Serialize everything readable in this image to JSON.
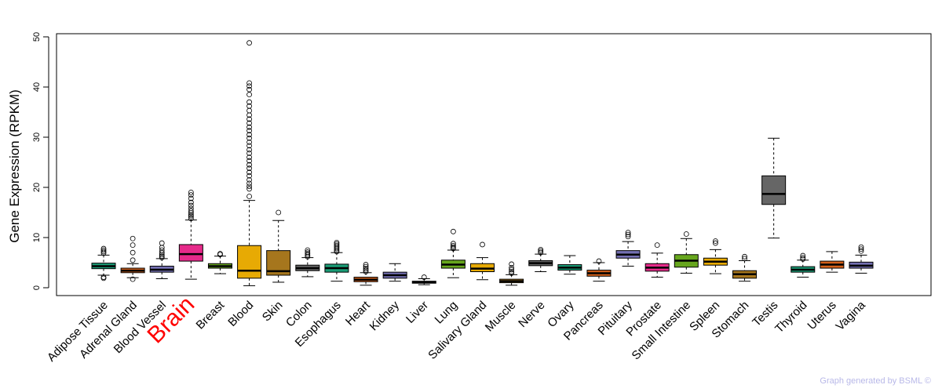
{
  "chart_data": {
    "type": "box",
    "ylabel": "Gene Expression (RPKM)",
    "ylim": [
      0,
      50
    ],
    "yticks": [
      0,
      10,
      20,
      30,
      40,
      50
    ],
    "grid": false,
    "highlight": "Brain",
    "highlight_color": "#ff0000",
    "categories": [
      "Adipose Tissue",
      "Adrenal Gland",
      "Blood Vessel",
      "Brain",
      "Breast",
      "Blood",
      "Skin",
      "Colon",
      "Esophagus",
      "Heart",
      "Kidney",
      "Liver",
      "Lung",
      "Salivary Gland",
      "Muscle",
      "Nerve",
      "Ovary",
      "Pancreas",
      "Pituitary",
      "Prostate",
      "Small Intestine",
      "Spleen",
      "Stomach",
      "Testis",
      "Thyroid",
      "Uterus",
      "Vagina"
    ],
    "boxes": [
      {
        "name": "Adipose Tissue",
        "color": "#1a9c76",
        "min": 2.5,
        "q1": 3.8,
        "median": 4.3,
        "q3": 4.9,
        "max": 6.5,
        "outliers": [
          1.9,
          2.1,
          6.9,
          7.2,
          7.5,
          7.8
        ]
      },
      {
        "name": "Adrenal Gland",
        "color": "#d3601a",
        "min": 2.0,
        "q1": 3.0,
        "median": 3.4,
        "q3": 3.9,
        "max": 4.8,
        "outliers": [
          1.7,
          5.5,
          7.0,
          8.5,
          9.8
        ]
      },
      {
        "name": "Blood Vessel",
        "color": "#7470b2",
        "min": 1.8,
        "q1": 3.1,
        "median": 3.6,
        "q3": 4.3,
        "max": 5.8,
        "outliers": [
          6.0,
          6.3,
          6.6,
          7.0,
          7.5,
          8.0,
          8.9
        ]
      },
      {
        "name": "Brain",
        "color": "#e62a8a",
        "min": 1.7,
        "q1": 5.3,
        "median": 6.7,
        "q3": 8.6,
        "max": 13.5,
        "outliers": [
          13.8,
          14.2,
          14.5,
          14.9,
          15.3,
          15.8,
          16.4,
          17.0,
          17.8,
          18.5,
          19.0
        ]
      },
      {
        "name": "Breast",
        "color": "#67a61e",
        "min": 2.8,
        "q1": 3.9,
        "median": 4.3,
        "q3": 4.8,
        "max": 6.3,
        "outliers": [
          6.6,
          6.8
        ]
      },
      {
        "name": "Blood",
        "color": "#e7aa04",
        "min": 0.4,
        "q1": 1.9,
        "median": 3.4,
        "q3": 8.4,
        "max": 17.4,
        "outliers": [
          18.2,
          19.7,
          20.2,
          20.8,
          21.5,
          22.3,
          23.0,
          23.8,
          24.5,
          25.3,
          26.0,
          26.8,
          27.5,
          28.3,
          29.0,
          29.8,
          30.5,
          31.3,
          32.0,
          32.8,
          33.6,
          34.4,
          35.3,
          36.2,
          37.0,
          38.5,
          39.5,
          40.2,
          40.8,
          48.8
        ]
      },
      {
        "name": "Skin",
        "color": "#a6761d",
        "min": 1.1,
        "q1": 2.5,
        "median": 3.3,
        "q3": 7.4,
        "max": 13.4,
        "outliers": [
          15.0
        ]
      },
      {
        "name": "Colon",
        "color": "#666666",
        "min": 2.2,
        "q1": 3.4,
        "median": 3.9,
        "q3": 4.5,
        "max": 6.0,
        "outliers": [
          6.2,
          6.5,
          6.8,
          7.1,
          7.5
        ]
      },
      {
        "name": "Esophagus",
        "color": "#1a9c76",
        "min": 1.3,
        "q1": 3.1,
        "median": 3.9,
        "q3": 4.7,
        "max": 7.0,
        "outliers": [
          7.2,
          7.5,
          7.8,
          8.1,
          8.4,
          8.7,
          9.0
        ]
      },
      {
        "name": "Heart",
        "color": "#d3601a",
        "min": 0.5,
        "q1": 1.2,
        "median": 1.6,
        "q3": 2.1,
        "max": 3.0,
        "outliers": [
          3.2,
          3.5,
          3.8,
          4.2,
          4.6
        ]
      },
      {
        "name": "Kidney",
        "color": "#7470b2",
        "min": 1.3,
        "q1": 1.9,
        "median": 2.5,
        "q3": 3.1,
        "max": 4.8,
        "outliers": []
      },
      {
        "name": "Liver",
        "color": "#e62a8a",
        "min": 0.6,
        "q1": 0.9,
        "median": 1.1,
        "q3": 1.3,
        "max": 1.8,
        "outliers": [
          2.1
        ]
      },
      {
        "name": "Lung",
        "color": "#67a61e",
        "min": 2.0,
        "q1": 3.9,
        "median": 4.6,
        "q3": 5.5,
        "max": 7.5,
        "outliers": [
          7.8,
          8.1,
          8.4,
          8.8,
          11.2
        ]
      },
      {
        "name": "Salivary Gland",
        "color": "#e7aa04",
        "min": 1.6,
        "q1": 3.2,
        "median": 3.8,
        "q3": 4.8,
        "max": 6.0,
        "outliers": [
          8.6
        ]
      },
      {
        "name": "Muscle",
        "color": "#a6761d",
        "min": 0.5,
        "q1": 1.0,
        "median": 1.3,
        "q3": 1.7,
        "max": 2.6,
        "outliers": [
          2.9,
          3.2,
          3.6,
          4.0,
          4.7
        ]
      },
      {
        "name": "Nerve",
        "color": "#666666",
        "min": 3.2,
        "q1": 4.4,
        "median": 4.9,
        "q3": 5.4,
        "max": 6.7,
        "outliers": [
          7.0,
          7.3,
          7.6
        ]
      },
      {
        "name": "Ovary",
        "color": "#1a9c76",
        "min": 2.7,
        "q1": 3.5,
        "median": 4.0,
        "q3": 4.6,
        "max": 6.4,
        "outliers": []
      },
      {
        "name": "Pancreas",
        "color": "#d3601a",
        "min": 1.3,
        "q1": 2.3,
        "median": 2.9,
        "q3": 3.5,
        "max": 5.0,
        "outliers": [
          5.3
        ]
      },
      {
        "name": "Pituitary",
        "color": "#7470b2",
        "min": 4.3,
        "q1": 5.9,
        "median": 6.6,
        "q3": 7.4,
        "max": 9.2,
        "outliers": [
          10.2,
          10.6,
          11.0
        ]
      },
      {
        "name": "Prostate",
        "color": "#e62a8a",
        "min": 2.1,
        "q1": 3.3,
        "median": 4.0,
        "q3": 4.8,
        "max": 6.9,
        "outliers": [
          8.5
        ]
      },
      {
        "name": "Small Intestine",
        "color": "#67a61e",
        "min": 2.9,
        "q1": 4.1,
        "median": 5.4,
        "q3": 6.6,
        "max": 9.8,
        "outliers": [
          10.7
        ]
      },
      {
        "name": "Spleen",
        "color": "#e7aa04",
        "min": 2.8,
        "q1": 4.5,
        "median": 5.2,
        "q3": 5.9,
        "max": 7.6,
        "outliers": [
          8.9,
          9.3
        ]
      },
      {
        "name": "Stomach",
        "color": "#a6761d",
        "min": 1.3,
        "q1": 1.9,
        "median": 2.7,
        "q3": 3.4,
        "max": 5.4,
        "outliers": [
          5.8,
          6.2
        ]
      },
      {
        "name": "Testis",
        "color": "#666666",
        "min": 9.9,
        "q1": 16.6,
        "median": 18.7,
        "q3": 22.3,
        "max": 29.8,
        "outliers": []
      },
      {
        "name": "Thyroid",
        "color": "#1a9c76",
        "min": 2.1,
        "q1": 3.1,
        "median": 3.6,
        "q3": 4.2,
        "max": 5.5,
        "outliers": [
          5.7,
          6.0,
          6.4
        ]
      },
      {
        "name": "Uterus",
        "color": "#d3601a",
        "min": 3.1,
        "q1": 3.9,
        "median": 4.6,
        "q3": 5.3,
        "max": 7.2,
        "outliers": []
      },
      {
        "name": "Vagina",
        "color": "#7470b2",
        "min": 2.9,
        "q1": 3.9,
        "median": 4.4,
        "q3": 5.1,
        "max": 6.5,
        "outliers": [
          7.3,
          7.7,
          8.1
        ]
      }
    ]
  },
  "footer": "Graph generated by BSML ©"
}
